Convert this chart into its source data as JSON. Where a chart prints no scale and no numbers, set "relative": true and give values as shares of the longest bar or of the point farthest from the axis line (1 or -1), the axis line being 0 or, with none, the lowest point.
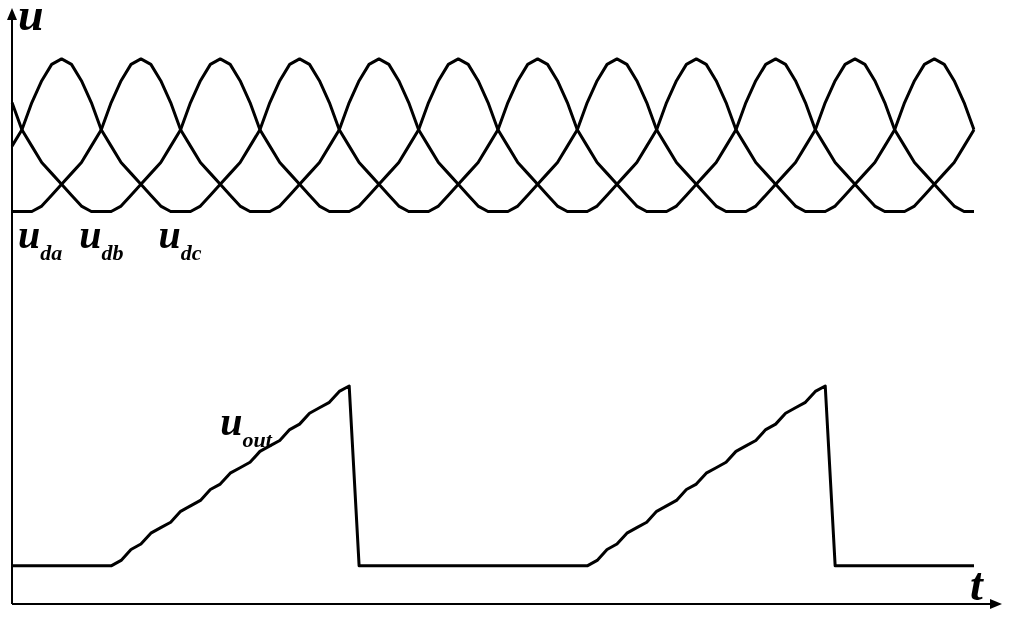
{
  "chart_data": {
    "type": "line",
    "relative": true,
    "xlabel": "t",
    "ylabel": "u",
    "legend": false,
    "marker": "none",
    "line_style": "solid",
    "categories": [
      null,
      null,
      null,
      null,
      null,
      null,
      null,
      null,
      null,
      null,
      null,
      null,
      null,
      null,
      null,
      null,
      null,
      null,
      null,
      null,
      null,
      null,
      null,
      null,
      null,
      null,
      null,
      null,
      null,
      null,
      null,
      null,
      null,
      null,
      null,
      null,
      null,
      null,
      null,
      null,
      null,
      null,
      null,
      null,
      null,
      null,
      null,
      null,
      null,
      null,
      null,
      null,
      null,
      null,
      null,
      null,
      null,
      null,
      null,
      null,
      null,
      null,
      null,
      null,
      null,
      null,
      null,
      null,
      null,
      null,
      null,
      null,
      null,
      null,
      null,
      null,
      null,
      null,
      null,
      null,
      null,
      null,
      null,
      null,
      null,
      null,
      null,
      null,
      null,
      null,
      null,
      null,
      null,
      null,
      null,
      null,
      null,
      null
    ],
    "series": [
      {
        "name": "u$_{dc}$",
        "color": "#000000",
        "values": [
          0.84,
          0.87,
          0.92,
          0.96,
          0.99,
          1,
          0.99,
          0.96,
          0.92,
          0.87,
          0.84,
          0.81,
          0.79,
          0.77,
          0.75,
          0.73,
          0.72,
          0.72,
          0.72,
          0.73,
          0.75,
          0.77,
          0.79,
          0.81,
          0.84,
          0.87,
          0.92,
          0.96,
          0.99,
          1,
          0.99,
          0.96,
          0.92,
          0.87,
          0.84,
          0.81,
          0.79,
          0.77,
          0.75,
          0.73,
          0.72,
          0.72,
          0.72,
          0.73,
          0.75,
          0.77,
          0.79,
          0.81,
          0.84,
          0.87,
          0.92,
          0.96,
          0.99,
          1,
          0.99,
          0.96,
          0.92,
          0.87,
          0.84,
          0.81,
          0.79,
          0.77,
          0.75,
          0.73,
          0.72,
          0.72,
          0.72,
          0.73,
          0.75,
          0.77,
          0.79,
          0.81,
          0.84,
          0.87,
          0.92,
          0.96,
          0.99,
          1,
          0.99,
          0.96,
          0.92,
          0.87,
          0.84,
          0.81,
          0.79,
          0.77,
          0.75,
          0.73,
          0.72,
          0.72,
          0.72,
          0.73,
          0.75,
          0.77,
          0.79,
          0.81,
          0.84,
          0.87
        ]
      },
      {
        "name": "u$_{da}$",
        "color": "#000000",
        "values": [
          0.72,
          0.72,
          0.72,
          0.73,
          0.75,
          0.77,
          0.79,
          0.81,
          0.84,
          0.87,
          0.92,
          0.96,
          0.99,
          1,
          0.99,
          0.96,
          0.92,
          0.87,
          0.84,
          0.81,
          0.79,
          0.77,
          0.75,
          0.73,
          0.72,
          0.72,
          0.72,
          0.73,
          0.75,
          0.77,
          0.79,
          0.81,
          0.84,
          0.87,
          0.92,
          0.96,
          0.99,
          1,
          0.99,
          0.96,
          0.92,
          0.87,
          0.84,
          0.81,
          0.79,
          0.77,
          0.75,
          0.73,
          0.72,
          0.72,
          0.72,
          0.73,
          0.75,
          0.77,
          0.79,
          0.81,
          0.84,
          0.87,
          0.92,
          0.96,
          0.99,
          1,
          0.99,
          0.96,
          0.92,
          0.87,
          0.84,
          0.81,
          0.79,
          0.77,
          0.75,
          0.73,
          0.72,
          0.72,
          0.72,
          0.73,
          0.75,
          0.77,
          0.79,
          0.81,
          0.84,
          0.87,
          0.92,
          0.96,
          0.99,
          1,
          0.99,
          0.96,
          0.92,
          0.87,
          0.84,
          0.81,
          0.79,
          0.77,
          0.75,
          0.73,
          0.72,
          0.72
        ]
      },
      {
        "name": "u$_{db}$",
        "color": "#000000",
        "values": [
          0.92,
          0.87,
          0.84,
          0.81,
          0.79,
          0.77,
          0.75,
          0.73,
          0.72,
          0.72,
          0.72,
          0.73,
          0.75,
          0.77,
          0.79,
          0.81,
          0.84,
          0.87,
          0.92,
          0.96,
          0.99,
          1,
          0.99,
          0.96,
          0.92,
          0.87,
          0.84,
          0.81,
          0.79,
          0.77,
          0.75,
          0.73,
          0.72,
          0.72,
          0.72,
          0.73,
          0.75,
          0.77,
          0.79,
          0.81,
          0.84,
          0.87,
          0.92,
          0.96,
          0.99,
          1,
          0.99,
          0.96,
          0.92,
          0.87,
          0.84,
          0.81,
          0.79,
          0.77,
          0.75,
          0.73,
          0.72,
          0.72,
          0.72,
          0.73,
          0.75,
          0.77,
          0.79,
          0.81,
          0.84,
          0.87,
          0.92,
          0.96,
          0.99,
          1,
          0.99,
          0.96,
          0.92,
          0.87,
          0.84,
          0.81,
          0.79,
          0.77,
          0.75,
          0.73,
          0.72,
          0.72,
          0.72,
          0.73,
          0.75,
          0.77,
          0.79,
          0.81,
          0.84,
          0.87,
          0.92,
          0.96,
          0.99,
          1,
          0.99,
          0.96,
          0.92,
          0.87
        ]
      },
      {
        "name": "u$_{out}$",
        "color": "#000000",
        "values": [
          0.07,
          0.07,
          0.07,
          0.07,
          0.07,
          0.07,
          0.07,
          0.07,
          0.07,
          0.07,
          0.07,
          0.08,
          0.1,
          0.11,
          0.13,
          0.14,
          0.15,
          0.17,
          0.18,
          0.19,
          0.21,
          0.22,
          0.24,
          0.25,
          0.26,
          0.28,
          0.29,
          0.3,
          0.32,
          0.33,
          0.35,
          0.36,
          0.37,
          0.39,
          0.4,
          0.07,
          0.07,
          0.07,
          0.07,
          0.07,
          0.07,
          0.07,
          0.07,
          0.07,
          0.07,
          0.07,
          0.07,
          0.07,
          0.07,
          0.07,
          0.07,
          0.07,
          0.07,
          0.07,
          0.07,
          0.07,
          0.07,
          0.07,
          0.07,
          0.08,
          0.1,
          0.11,
          0.13,
          0.14,
          0.15,
          0.17,
          0.18,
          0.19,
          0.21,
          0.22,
          0.24,
          0.25,
          0.26,
          0.28,
          0.29,
          0.3,
          0.32,
          0.33,
          0.35,
          0.36,
          0.37,
          0.39,
          0.4,
          0.07,
          0.07,
          0.07,
          0.07,
          0.07,
          0.07,
          0.07,
          0.07,
          0.07,
          0.07,
          0.07,
          0.07,
          0.07,
          0.07,
          0.07
        ]
      }
    ]
  }
}
